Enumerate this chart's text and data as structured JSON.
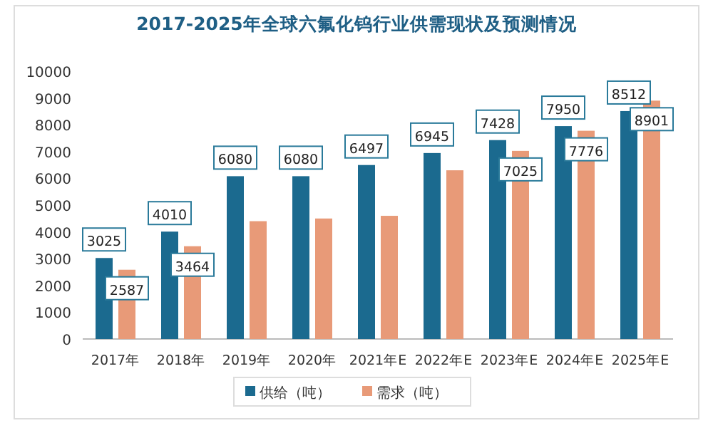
{
  "chart_data": {
    "type": "bar",
    "title": "2017-2025年全球六氟化钨行业供需现状及预测情况",
    "categories": [
      "2017年",
      "2018年",
      "2019年",
      "2020年",
      "2021年E",
      "2022年E",
      "2023年E",
      "2024年E",
      "2025年E"
    ],
    "series": [
      {
        "name": "供给（吨）",
        "color": "#1b6a8f",
        "values": [
          3025,
          4010,
          6080,
          6080,
          6497,
          6945,
          7428,
          7950,
          8512
        ],
        "value_labels": [
          "3025",
          "4010",
          "6080",
          "6080",
          "6497",
          "6945",
          "7428",
          "7950",
          "8512"
        ]
      },
      {
        "name": "需求（吨）",
        "color": "#e89a78",
        "values": [
          2587,
          3464,
          4400,
          4500,
          4600,
          6300,
          7025,
          7776,
          8901
        ],
        "value_labels": [
          "2587",
          "3464",
          null,
          null,
          null,
          null,
          "7025",
          "7776",
          "8901"
        ]
      }
    ],
    "ylim": [
      0,
      10000
    ],
    "yticks": [
      0,
      1000,
      2000,
      3000,
      4000,
      5000,
      6000,
      7000,
      8000,
      9000,
      10000
    ],
    "grid": false,
    "legend": "bottom"
  }
}
